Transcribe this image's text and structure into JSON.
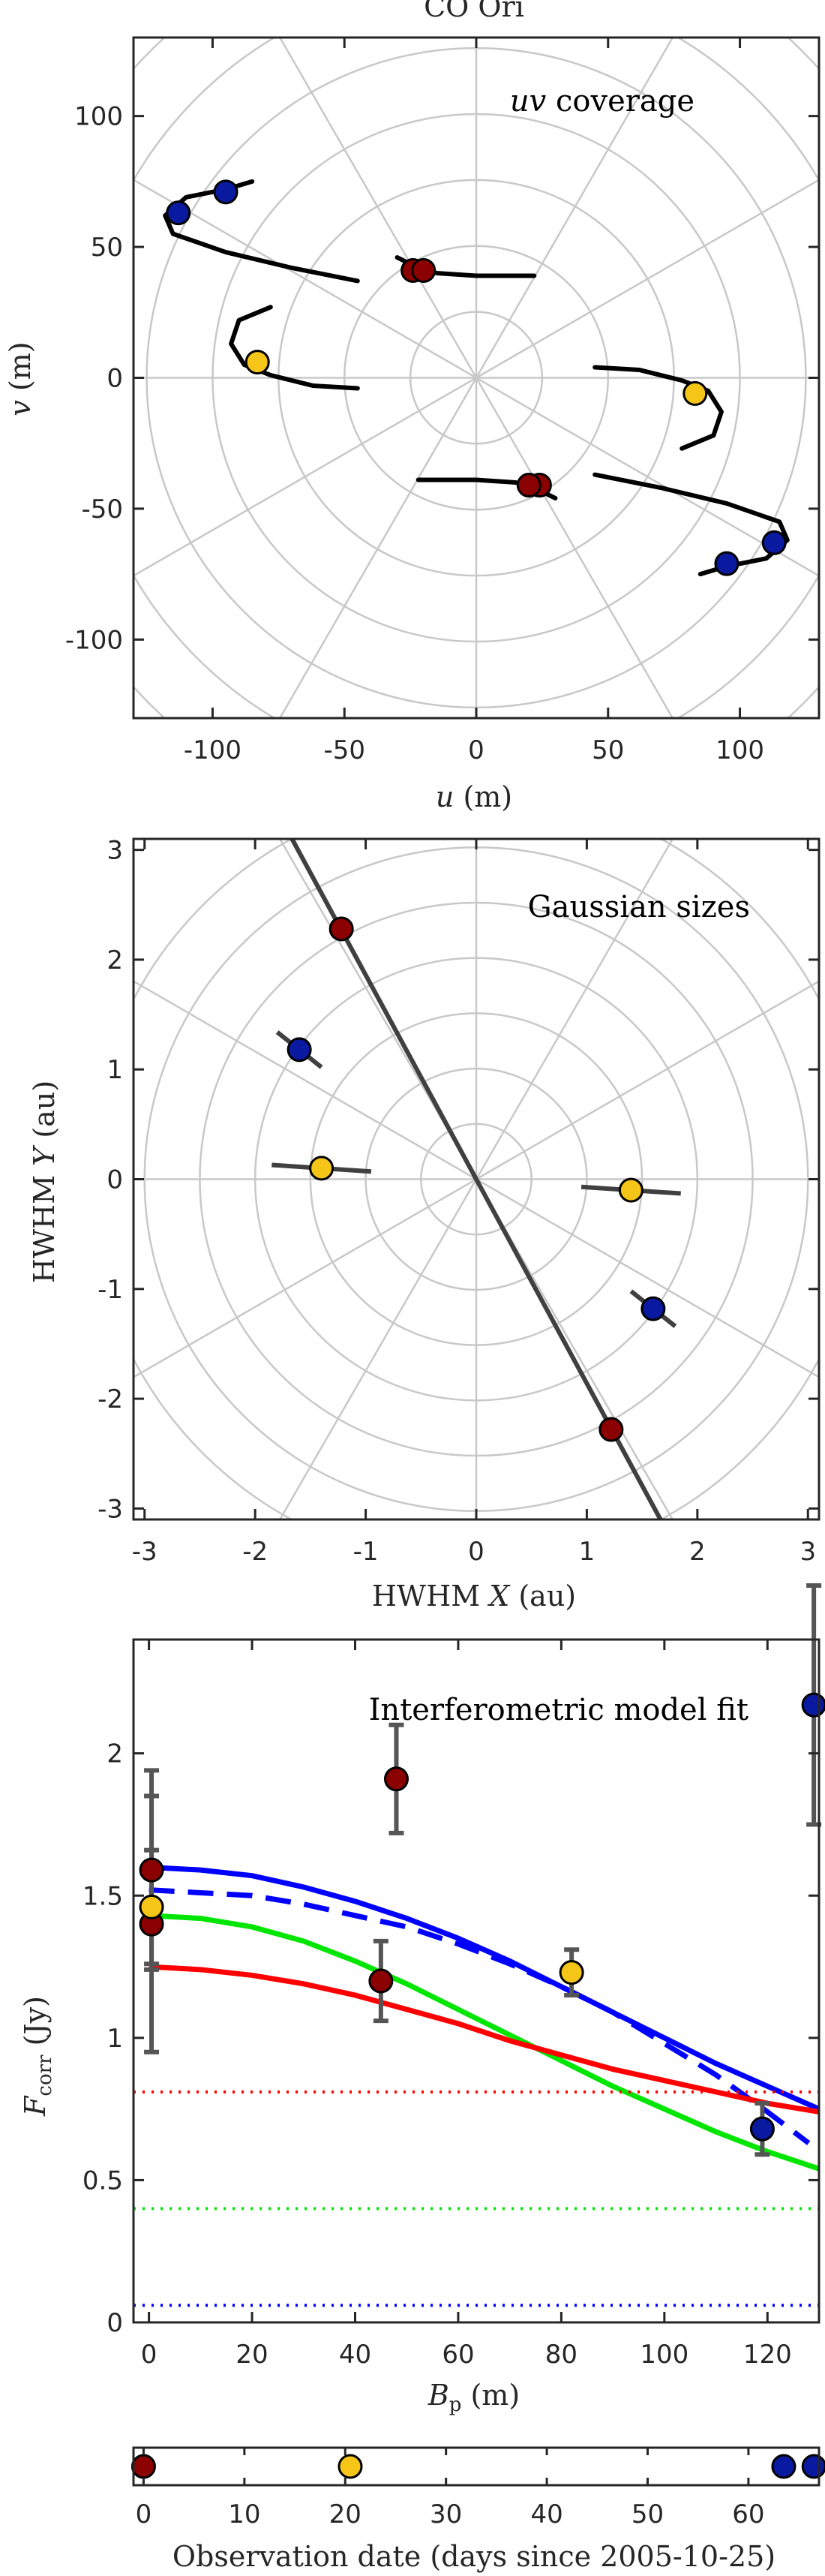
{
  "colors": {
    "blue": "#0a1aa0",
    "darkred": "#8b0000",
    "yellow": "#f5c518",
    "grid": "#c8c8c8",
    "axis": "#262626"
  },
  "chart_data": [
    {
      "type": "scatter",
      "title": "CO Ori",
      "annotation": "uv coverage",
      "xlabel": "u (m)",
      "ylabel": "v (m)",
      "xlim": [
        -130,
        130
      ],
      "ylim": [
        -130,
        130
      ],
      "xticks": [
        "-100",
        "-50",
        "0",
        "50",
        "100"
      ],
      "yticks": [
        "100",
        "50",
        "0",
        "-50",
        "-100"
      ],
      "grid": "polar",
      "points": [
        {
          "u": -113,
          "v": 63,
          "color": "blue"
        },
        {
          "u": -95,
          "v": 71,
          "color": "blue"
        },
        {
          "u": 113,
          "v": -63,
          "color": "blue"
        },
        {
          "u": 95,
          "v": -71,
          "color": "blue"
        },
        {
          "u": -83,
          "v": 6,
          "color": "yellow"
        },
        {
          "u": 83,
          "v": -6,
          "color": "yellow"
        },
        {
          "u": -24,
          "v": 41,
          "color": "darkred"
        },
        {
          "u": -20,
          "v": 41,
          "color": "darkred"
        },
        {
          "u": 24,
          "v": -41,
          "color": "darkred"
        },
        {
          "u": 20,
          "v": -41,
          "color": "darkred"
        }
      ]
    },
    {
      "type": "scatter",
      "annotation": "Gaussian sizes",
      "xlabel": "HWHM X (au)",
      "ylabel": "HWHM Y (au)",
      "xlim": [
        -3.1,
        3.1
      ],
      "ylim": [
        -3.1,
        3.1
      ],
      "xticks": [
        "-3",
        "-2",
        "-1",
        "0",
        "1",
        "2",
        "3"
      ],
      "yticks": [
        "3",
        "2",
        "1",
        "0",
        "-1",
        "-2",
        "-3"
      ],
      "grid": "polar",
      "points": [
        {
          "x": -1.22,
          "y": 2.28,
          "color": "darkred"
        },
        {
          "x": 1.22,
          "y": -2.28,
          "color": "darkred"
        },
        {
          "x": -1.6,
          "y": 1.18,
          "color": "blue"
        },
        {
          "x": 1.6,
          "y": -1.18,
          "color": "blue"
        },
        {
          "x": -1.4,
          "y": 0.1,
          "color": "yellow"
        },
        {
          "x": 1.4,
          "y": -0.1,
          "color": "yellow"
        }
      ]
    },
    {
      "type": "line",
      "annotation": "Interferometric model fit",
      "xlabel": "Bp (m)",
      "ylabel": "Fcorr (Jy)",
      "xlim": [
        -3,
        130
      ],
      "ylim": [
        0,
        2.4
      ],
      "xticks": [
        "0",
        "20",
        "40",
        "60",
        "80",
        "100",
        "120"
      ],
      "yticks": [
        "2",
        "1.5",
        "1",
        "0.5",
        "0"
      ],
      "series": [
        {
          "color": "blue",
          "style": "solid",
          "x": [
            0,
            10,
            20,
            30,
            40,
            50,
            60,
            70,
            80,
            90,
            100,
            110,
            120,
            130
          ],
          "y": [
            1.6,
            1.59,
            1.57,
            1.53,
            1.48,
            1.42,
            1.35,
            1.27,
            1.18,
            1.09,
            1.0,
            0.91,
            0.83,
            0.75
          ]
        },
        {
          "color": "blue",
          "style": "dashed",
          "x": [
            0,
            10,
            20,
            30,
            40,
            50,
            60,
            70,
            80,
            90,
            100,
            110,
            120,
            128
          ],
          "y": [
            1.52,
            1.51,
            1.5,
            1.47,
            1.43,
            1.39,
            1.33,
            1.26,
            1.18,
            1.09,
            0.98,
            0.87,
            0.74,
            0.63
          ]
        },
        {
          "color": "green",
          "style": "solid",
          "x": [
            0,
            10,
            20,
            30,
            40,
            50,
            60,
            70,
            80,
            90,
            100,
            110,
            120,
            130
          ],
          "y": [
            1.43,
            1.42,
            1.39,
            1.34,
            1.27,
            1.19,
            1.1,
            1.01,
            0.92,
            0.83,
            0.75,
            0.67,
            0.6,
            0.54
          ]
        },
        {
          "color": "red",
          "style": "solid",
          "x": [
            0,
            10,
            20,
            30,
            40,
            50,
            60,
            70,
            80,
            90,
            100,
            110,
            120,
            130
          ],
          "y": [
            1.25,
            1.24,
            1.22,
            1.19,
            1.15,
            1.1,
            1.05,
            0.99,
            0.94,
            0.89,
            0.85,
            0.81,
            0.77,
            0.74
          ]
        },
        {
          "color": "red",
          "style": "dotted",
          "x": [
            -3,
            130
          ],
          "y": [
            0.81,
            0.81
          ]
        },
        {
          "color": "green",
          "style": "dotted",
          "x": [
            -3,
            130
          ],
          "y": [
            0.4,
            0.4
          ]
        },
        {
          "color": "blue",
          "style": "dotted",
          "x": [
            -3,
            130
          ],
          "y": [
            0.06,
            0.06
          ]
        }
      ],
      "points": [
        {
          "x": 0.5,
          "y": 1.4,
          "err": 0.45,
          "color": "darkred"
        },
        {
          "x": 0.5,
          "y": 1.59,
          "err": 0.35,
          "color": "darkred"
        },
        {
          "x": 0.5,
          "y": 1.46,
          "err": 0.2,
          "color": "yellow"
        },
        {
          "x": 45,
          "y": 1.2,
          "err": 0.14,
          "color": "darkred"
        },
        {
          "x": 48,
          "y": 1.91,
          "err": 0.19,
          "color": "darkred"
        },
        {
          "x": 82,
          "y": 1.23,
          "err": 0.08,
          "color": "yellow"
        },
        {
          "x": 119,
          "y": 0.68,
          "err": 0.09,
          "color": "blue"
        },
        {
          "x": 129,
          "y": 2.17,
          "err": 0.42,
          "color": "blue"
        }
      ]
    },
    {
      "type": "scatter",
      "xlabel": "Observation date (days since 2005-10-25)",
      "xlim": [
        -1,
        67
      ],
      "xticks": [
        "0",
        "10",
        "20",
        "30",
        "40",
        "50",
        "60"
      ],
      "points": [
        {
          "x": 0,
          "color": "darkred"
        },
        {
          "x": 20.5,
          "color": "yellow"
        },
        {
          "x": 63.5,
          "color": "blue"
        },
        {
          "x": 66.5,
          "color": "blue"
        }
      ]
    }
  ]
}
